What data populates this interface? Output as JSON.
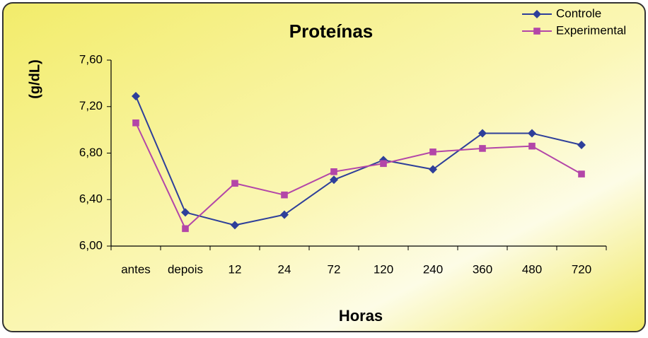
{
  "chart_data": {
    "type": "line",
    "title": "Proteínas",
    "y_label": "(g/dL)",
    "x_label": "Horas",
    "categories": [
      "antes",
      "depois",
      "12",
      "24",
      "72",
      "120",
      "240",
      "360",
      "480",
      "720"
    ],
    "series": [
      {
        "name": "Controle",
        "color": "#2e3f9a",
        "marker": "diamond",
        "values": [
          7.29,
          6.29,
          6.18,
          6.27,
          6.57,
          6.74,
          6.66,
          6.97,
          6.97,
          6.87
        ]
      },
      {
        "name": "Experimental",
        "color": "#b346a8",
        "marker": "square",
        "values": [
          7.06,
          6.15,
          6.54,
          6.44,
          6.64,
          6.71,
          6.81,
          6.84,
          6.86,
          6.62
        ]
      }
    ],
    "ylim": [
      6.0,
      7.6
    ],
    "yticks": [
      {
        "value": 6.0,
        "label": "6,00"
      },
      {
        "value": 6.4,
        "label": "6,40"
      },
      {
        "value": 6.8,
        "label": "6,80"
      },
      {
        "value": 7.2,
        "label": "7,20"
      },
      {
        "value": 7.6,
        "label": "7,60"
      }
    ],
    "legend": "top-right"
  }
}
